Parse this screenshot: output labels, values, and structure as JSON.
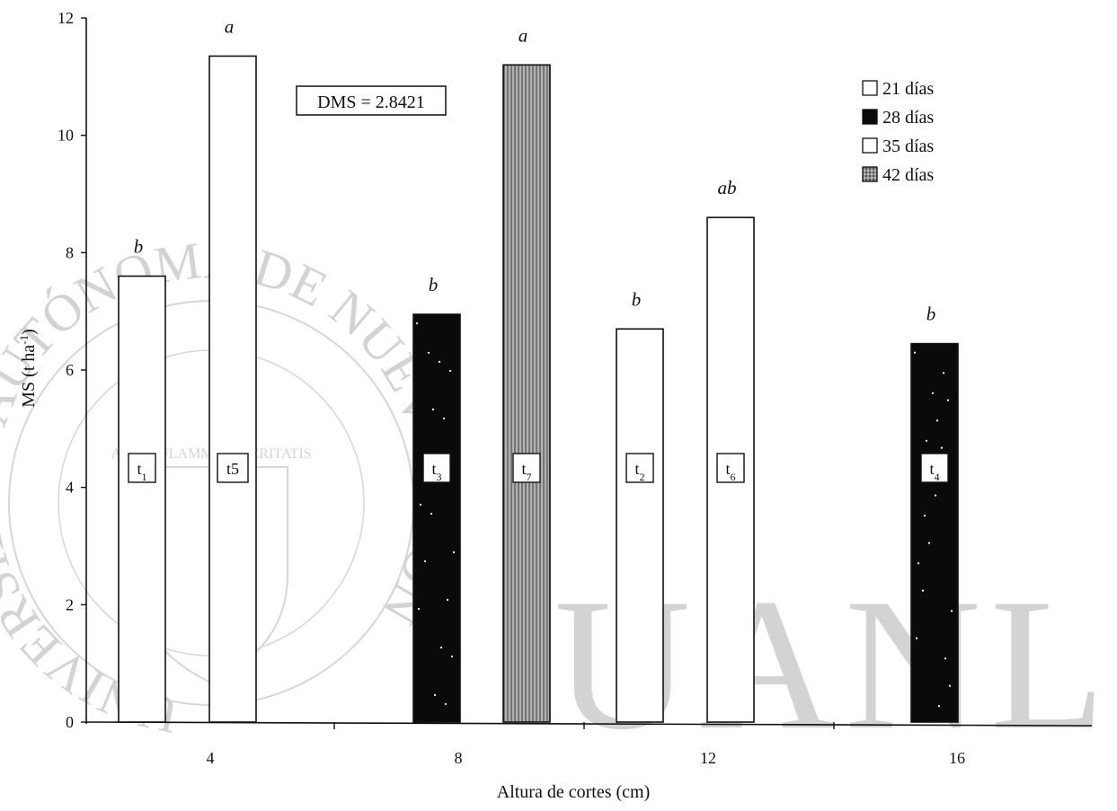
{
  "chart_data": {
    "type": "bar",
    "xlabel": "Altura de cortes (cm)",
    "ylabel_main": "MS (t ha",
    "ylabel_sup": "-1",
    "ylabel_close": ")",
    "ylim": [
      0,
      12
    ],
    "yticks": [
      "0",
      "2",
      "4",
      "6",
      "8",
      "10",
      "12"
    ],
    "categories": [
      "4",
      "8",
      "12",
      "16"
    ],
    "bars": [
      {
        "category": "4",
        "treatment": "t",
        "sub": "1",
        "value": 7.6,
        "letter": "b",
        "series": "21 días"
      },
      {
        "category": "4",
        "treatment": "t5",
        "sub": "",
        "value": 11.35,
        "letter": "a",
        "series": "35 días"
      },
      {
        "category": "8",
        "treatment": "t",
        "sub": "3",
        "value": 6.95,
        "letter": "b",
        "series": "28 días"
      },
      {
        "category": "8",
        "treatment": "t",
        "sub": "7",
        "value": 11.2,
        "letter": "a",
        "series": "42 días"
      },
      {
        "category": "12",
        "treatment": "t",
        "sub": "2",
        "value": 6.7,
        "letter": "b",
        "series": "21 días"
      },
      {
        "category": "12",
        "treatment": "t",
        "sub": "6",
        "value": 8.6,
        "letter": "ab",
        "series": "35 días"
      },
      {
        "category": "16",
        "treatment": "t",
        "sub": "4",
        "value": 6.45,
        "letter": "b",
        "series": "28 días"
      }
    ],
    "legend": [
      {
        "name": "21 días",
        "style": "white"
      },
      {
        "name": "28 días",
        "style": "black"
      },
      {
        "name": "35 días",
        "style": "white"
      },
      {
        "name": "42 días",
        "style": "hatched"
      }
    ],
    "legend_position": "top-right",
    "annotation": "DMS = 2.8421",
    "grid": false,
    "colors": {
      "white": "#ffffff",
      "black": "#0a0a0a",
      "hatched": "#7a7a7a",
      "watermark": "#cfcfcf"
    }
  },
  "watermark": {
    "big_text": "UANL",
    "ring_text": "UNIVERSIDAD AUTÓNOMA DE NUEVO LEÓN",
    "motto": "ALERE FLAMMAM VERITATIS"
  }
}
